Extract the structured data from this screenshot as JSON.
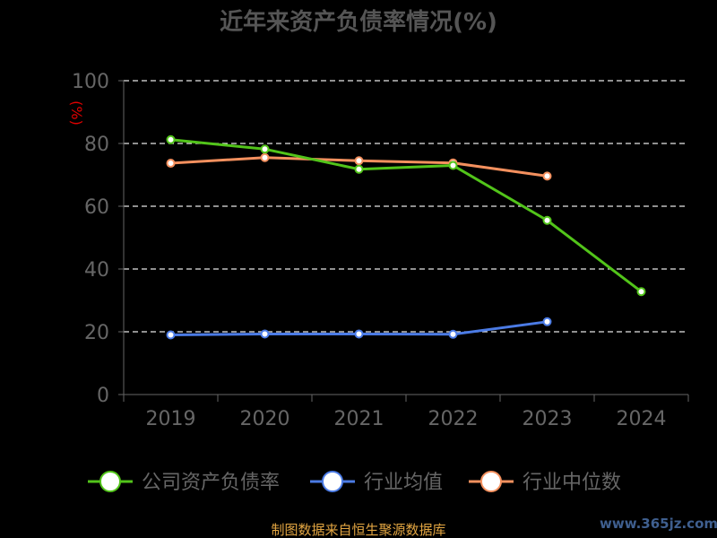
{
  "title": "近年来资产负债率情况(%)",
  "source_text": "制图数据来自恒生聚源数据库",
  "watermark": "www.365jz.com",
  "chart_data": {
    "type": "line",
    "title": "近年来资产负债率情况(%)",
    "ylabel": "(%)",
    "xlabel": "",
    "categories": [
      "2019",
      "2020",
      "2021",
      "2022",
      "2023",
      "2024"
    ],
    "ylim": [
      0,
      100
    ],
    "yticks": [
      0,
      20,
      40,
      60,
      80,
      100
    ],
    "grid": true,
    "legend": "bottom",
    "series": [
      {
        "name": "公司资产负债率",
        "color": "#52c41a",
        "values": [
          81.2,
          78.2,
          71.8,
          73.0,
          55.5,
          32.8
        ]
      },
      {
        "name": "行业均值",
        "color": "#4b7be5",
        "values": [
          19.0,
          19.3,
          19.3,
          19.2,
          23.2,
          null
        ]
      },
      {
        "name": "行业中位数",
        "color": "#f4905e",
        "values": [
          73.7,
          75.5,
          74.5,
          73.8,
          69.6,
          null
        ]
      }
    ]
  }
}
